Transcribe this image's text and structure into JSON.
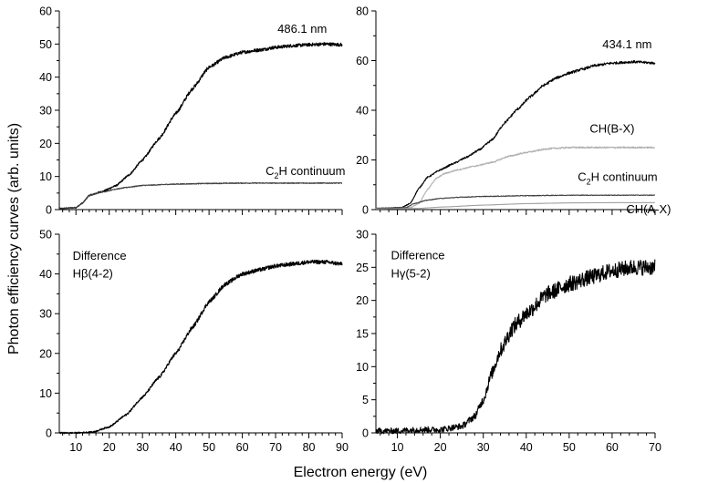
{
  "figure": {
    "xlabel": "Electron energy (eV)",
    "ylabel": "Photon efficiency curves (arb. units)"
  },
  "chart_data": [
    {
      "type": "line",
      "id": "a",
      "xlim": [
        5,
        90
      ],
      "ylim": [
        0,
        60
      ],
      "xticks": [
        10,
        20,
        30,
        40,
        50,
        60,
        70,
        80,
        90
      ],
      "yticks": [
        0,
        10,
        20,
        30,
        40,
        50,
        60
      ],
      "show_xtick_labels": false,
      "annotations": [
        {
          "text": "486.1 nm",
          "x": 78,
          "y": 54.5,
          "anchor": "middle"
        },
        {
          "text": "C",
          "sub": "2",
          "tail": "H continuum",
          "x": 67,
          "y": 11.5,
          "anchor": "start"
        }
      ],
      "series": [
        {
          "color": "#000000",
          "noise": 0.5,
          "points": [
            [
              5,
              0.3
            ],
            [
              10,
              0.6
            ],
            [
              12,
              2.0
            ],
            [
              14,
              4.3
            ],
            [
              18,
              5.5
            ],
            [
              22,
              7.2
            ],
            [
              26,
              10.5
            ],
            [
              30,
              15.0
            ],
            [
              35,
              21.5
            ],
            [
              40,
              29.0
            ],
            [
              45,
              36.5
            ],
            [
              50,
              43.0
            ],
            [
              55,
              46.0
            ],
            [
              60,
              47.5
            ],
            [
              65,
              48.2
            ],
            [
              70,
              49.0
            ],
            [
              75,
              49.5
            ],
            [
              80,
              49.8
            ],
            [
              85,
              50.0
            ],
            [
              90,
              49.8
            ]
          ]
        },
        {
          "color": "#404040",
          "noise": 0.25,
          "points": [
            [
              5,
              0.3
            ],
            [
              10,
              0.6
            ],
            [
              12,
              2.0
            ],
            [
              14,
              4.3
            ],
            [
              18,
              5.3
            ],
            [
              22,
              6.2
            ],
            [
              26,
              6.8
            ],
            [
              30,
              7.3
            ],
            [
              40,
              7.7
            ],
            [
              50,
              7.9
            ],
            [
              60,
              8.0
            ],
            [
              70,
              8.0
            ],
            [
              80,
              8.0
            ],
            [
              90,
              8.0
            ]
          ]
        }
      ]
    },
    {
      "type": "line",
      "id": "b",
      "xlim": [
        5,
        70
      ],
      "ylim": [
        0,
        80
      ],
      "xticks": [
        10,
        20,
        30,
        40,
        50,
        60,
        70
      ],
      "yticks": [
        0,
        20,
        40,
        60,
        80
      ],
      "show_xtick_labels": false,
      "annotations": [
        {
          "text": "434.1 nm",
          "x": 63.5,
          "y": 66.5,
          "anchor": "middle"
        },
        {
          "text": "CH(B-X)",
          "x": 60,
          "y": 32.5,
          "anchor": "middle"
        },
        {
          "text": "C",
          "sub": "2",
          "tail": "H continuum",
          "x": 52,
          "y": 13,
          "anchor": "start"
        },
        {
          "text": "CH(A-X)",
          "x": 68.5,
          "y": 0,
          "anchor": "middle"
        }
      ],
      "series": [
        {
          "color": "#000000",
          "noise": 0.5,
          "points": [
            [
              5,
              0.5
            ],
            [
              11,
              0.8
            ],
            [
              13,
              2.5
            ],
            [
              15,
              8.5
            ],
            [
              17,
              13.0
            ],
            [
              20,
              16.0
            ],
            [
              23,
              18.5
            ],
            [
              26,
              21.0
            ],
            [
              29,
              24.0
            ],
            [
              32,
              28.0
            ],
            [
              35,
              35.0
            ],
            [
              38,
              40.5
            ],
            [
              41,
              45.5
            ],
            [
              44,
              50.0
            ],
            [
              47,
              53.0
            ],
            [
              50,
              55.0
            ],
            [
              53,
              56.5
            ],
            [
              56,
              58.0
            ],
            [
              60,
              59.0
            ],
            [
              65,
              59.5
            ],
            [
              70,
              59.0
            ]
          ]
        },
        {
          "color": "#b0b0b0",
          "noise": 0.4,
          "points": [
            [
              5,
              0.5
            ],
            [
              13,
              0.8
            ],
            [
              15,
              2.5
            ],
            [
              17,
              8.0
            ],
            [
              19,
              12.5
            ],
            [
              21,
              14.5
            ],
            [
              24,
              16.0
            ],
            [
              28,
              17.5
            ],
            [
              32,
              19.0
            ],
            [
              36,
              21.5
            ],
            [
              40,
              23.0
            ],
            [
              45,
              24.5
            ],
            [
              50,
              25.0
            ],
            [
              55,
              25.0
            ],
            [
              60,
              25.0
            ],
            [
              65,
              25.0
            ],
            [
              70,
              25.0
            ]
          ]
        },
        {
          "color": "#404040",
          "noise": 0.3,
          "points": [
            [
              5,
              0.5
            ],
            [
              12,
              0.8
            ],
            [
              14,
              2.5
            ],
            [
              17,
              3.8
            ],
            [
              20,
              4.5
            ],
            [
              25,
              5.0
            ],
            [
              30,
              5.3
            ],
            [
              40,
              5.6
            ],
            [
              50,
              5.8
            ],
            [
              60,
              5.8
            ],
            [
              70,
              5.8
            ]
          ]
        },
        {
          "color": "#a0a0a0",
          "noise": 0.05,
          "points": [
            [
              5,
              0.3
            ],
            [
              15,
              0.5
            ],
            [
              20,
              1.0
            ],
            [
              30,
              1.8
            ],
            [
              40,
              2.4
            ],
            [
              50,
              2.7
            ],
            [
              60,
              2.8
            ],
            [
              70,
              2.8
            ]
          ]
        }
      ]
    },
    {
      "type": "line",
      "id": "c",
      "xlim": [
        5,
        90
      ],
      "ylim": [
        0,
        50
      ],
      "xticks": [
        10,
        20,
        30,
        40,
        50,
        60,
        70,
        80,
        90
      ],
      "yticks": [
        0,
        10,
        20,
        30,
        40,
        50
      ],
      "show_xtick_labels": true,
      "annotations": [
        {
          "text": "Difference",
          "x": 9,
          "y": 44.5,
          "anchor": "start"
        },
        {
          "text": "Hβ(4-2)",
          "x": 9,
          "y": 40.0,
          "anchor": "start"
        }
      ],
      "series": [
        {
          "color": "#000000",
          "noise": 0.5,
          "points": [
            [
              5,
              0.0
            ],
            [
              10,
              0.0
            ],
            [
              15,
              0.2
            ],
            [
              20,
              1.5
            ],
            [
              25,
              4.5
            ],
            [
              30,
              9.0
            ],
            [
              35,
              14.0
            ],
            [
              40,
              20.0
            ],
            [
              45,
              26.5
            ],
            [
              50,
              33.0
            ],
            [
              55,
              37.5
            ],
            [
              60,
              40.0
            ],
            [
              65,
              41.0
            ],
            [
              70,
              42.0
            ],
            [
              75,
              42.5
            ],
            [
              80,
              43.0
            ],
            [
              85,
              43.0
            ],
            [
              90,
              42.5
            ]
          ]
        }
      ]
    },
    {
      "type": "line",
      "id": "d",
      "xlim": [
        5,
        70
      ],
      "ylim": [
        0,
        30
      ],
      "xticks": [
        10,
        20,
        30,
        40,
        50,
        60,
        70
      ],
      "yticks": [
        0,
        5,
        10,
        15,
        20,
        25,
        30
      ],
      "show_xtick_labels": true,
      "annotations": [
        {
          "text": "Difference",
          "x": 8.5,
          "y": 26.8,
          "anchor": "start"
        },
        {
          "text": "Hγ(5-2)",
          "x": 8.5,
          "y": 24.0,
          "anchor": "start"
        }
      ],
      "series": [
        {
          "color": "#000000",
          "noise": 1.2,
          "points": [
            [
              5,
              0.3
            ],
            [
              10,
              0.3
            ],
            [
              15,
              0.5
            ],
            [
              20,
              0.5
            ],
            [
              25,
              1.0
            ],
            [
              28,
              2.5
            ],
            [
              30,
              5.0
            ],
            [
              32,
              9.0
            ],
            [
              34,
              12.5
            ],
            [
              37,
              16.0
            ],
            [
              40,
              18.0
            ],
            [
              45,
              21.0
            ],
            [
              50,
              22.5
            ],
            [
              55,
              23.5
            ],
            [
              60,
              24.5
            ],
            [
              65,
              25.0
            ],
            [
              70,
              25.0
            ]
          ]
        }
      ]
    }
  ]
}
